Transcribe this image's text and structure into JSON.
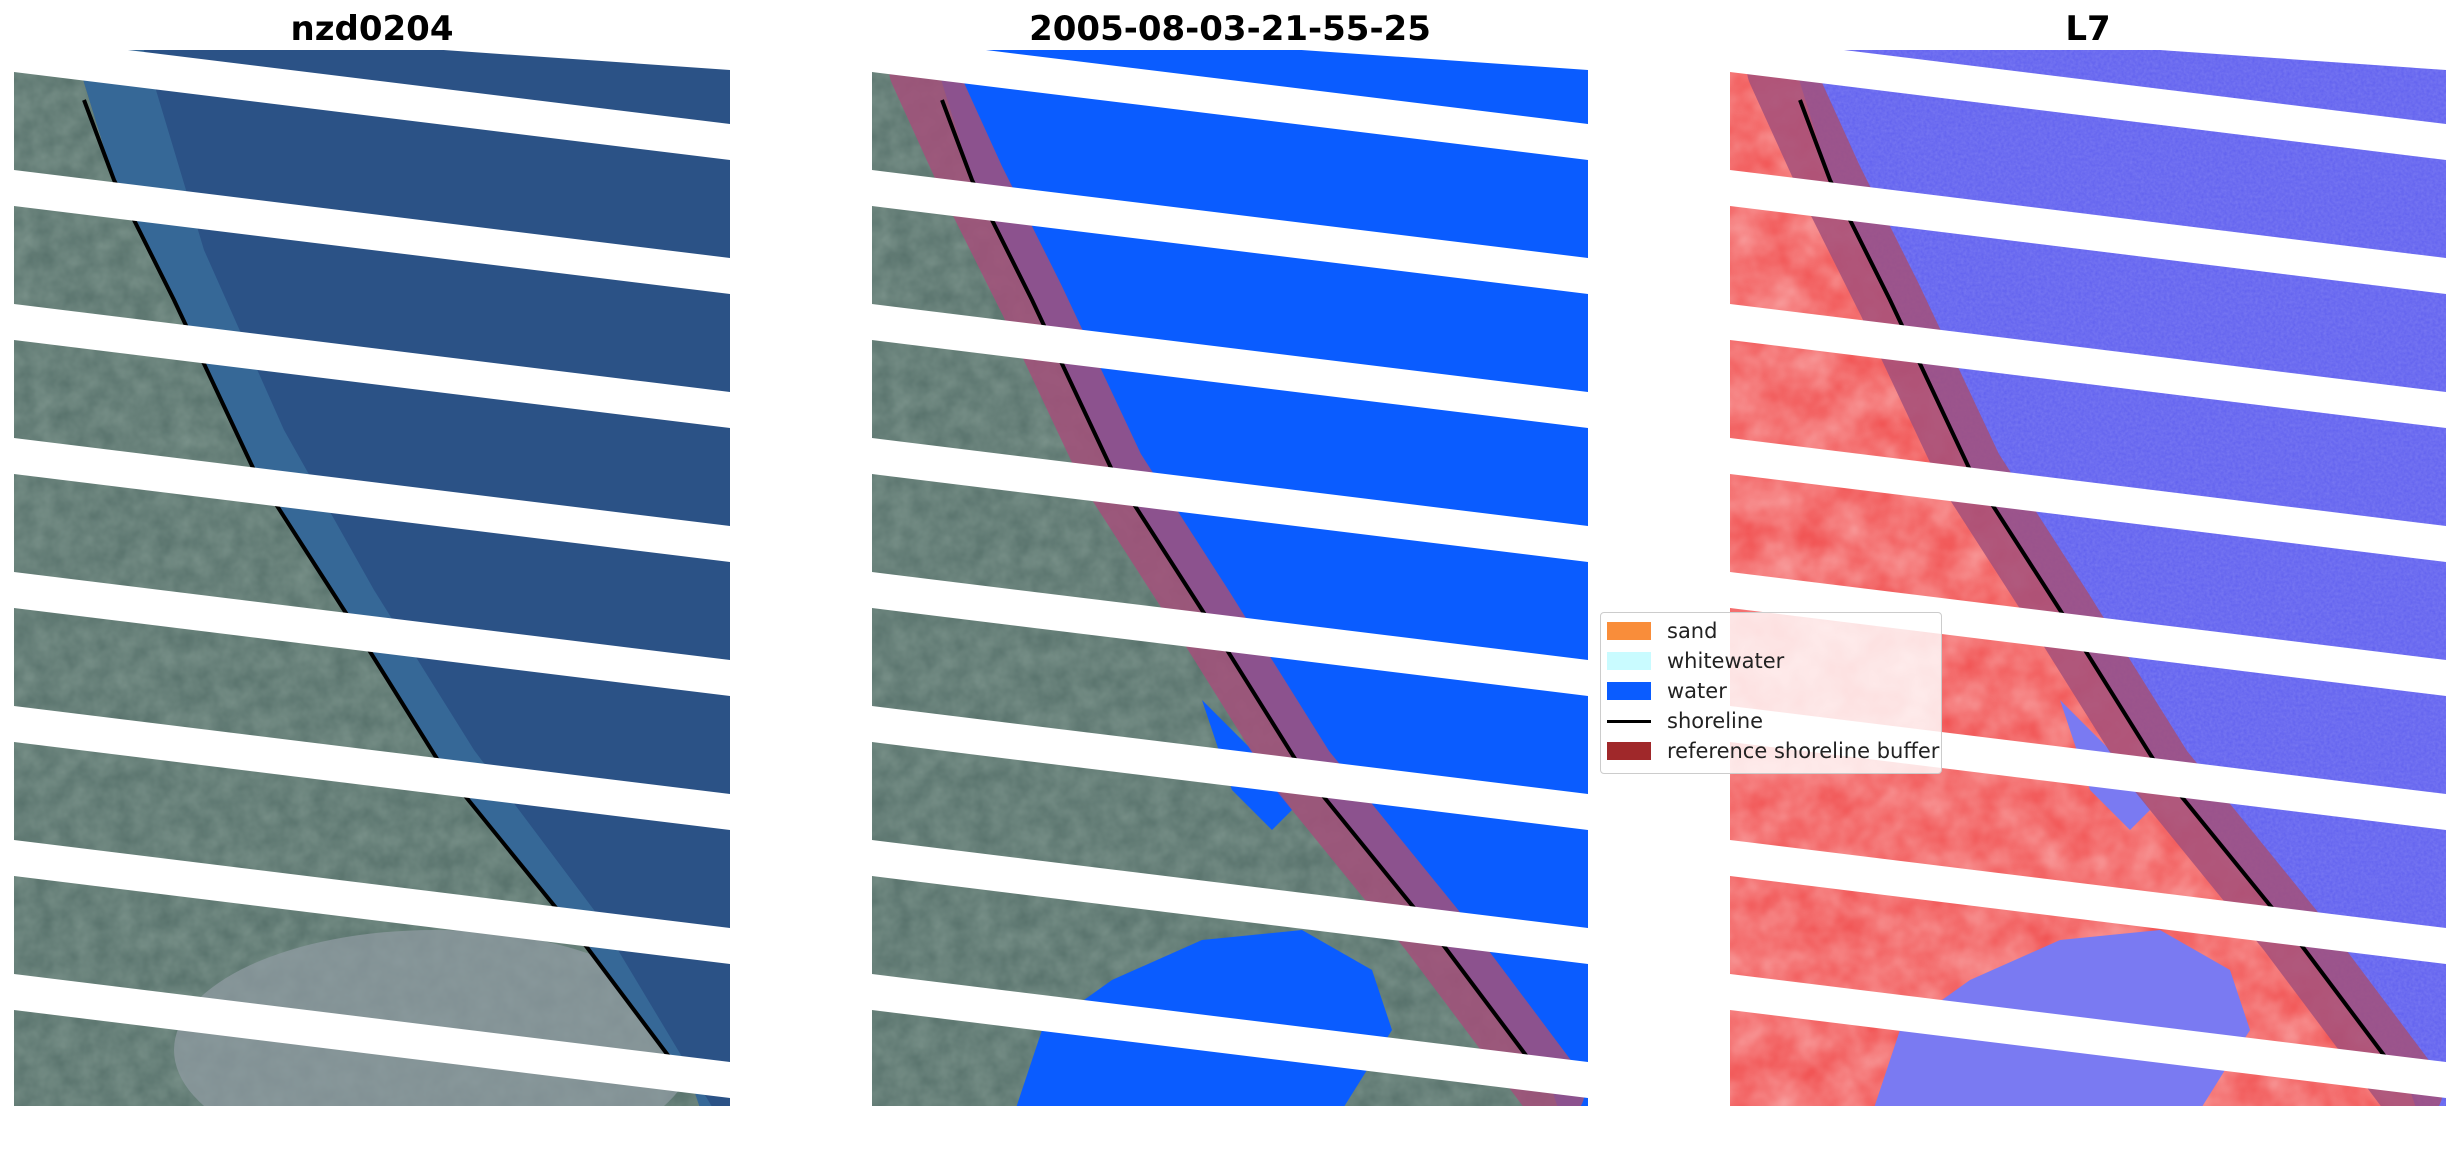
{
  "panels": [
    {
      "title": "nzd0204"
    },
    {
      "title": "2005-08-03-21-55-25"
    },
    {
      "title": "L7"
    }
  ],
  "legend": {
    "items": [
      {
        "label": "sand",
        "color": "#f98d3a",
        "kind": "patch"
      },
      {
        "label": "whitewater",
        "color": "#c9fbff",
        "kind": "patch"
      },
      {
        "label": "water",
        "color": "#0a5cff",
        "kind": "patch"
      },
      {
        "label": "shoreline",
        "color": "#000000",
        "kind": "line"
      },
      {
        "label": "reference shoreline buffer",
        "color": "#a0282a",
        "kind": "patch"
      }
    ]
  },
  "colors": {
    "ocean_rgb": "#2b5286",
    "land_rgb": "#4f6a63",
    "classified_water": "#0a5cff",
    "index_water": "#5c5cf0",
    "index_land": "#f04040",
    "buffer": "#a3507a"
  }
}
